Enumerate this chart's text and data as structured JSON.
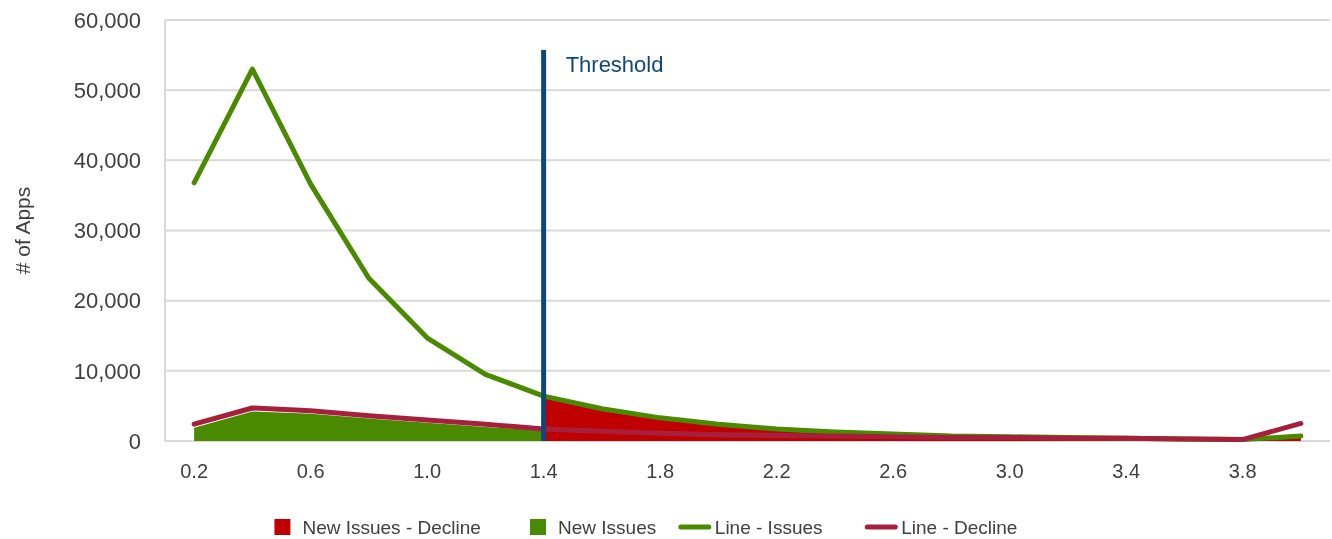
{
  "chart_data": {
    "type": "line",
    "ylabel": "# of Apps",
    "x": [
      0.2,
      0.4,
      0.6,
      0.8,
      1.0,
      1.2,
      1.4,
      1.6,
      1.8,
      2.0,
      2.2,
      2.4,
      2.6,
      2.8,
      3.0,
      3.2,
      3.4,
      3.6,
      3.8,
      4.0
    ],
    "xlim": [
      0.1,
      4.1
    ],
    "xticks": [
      0.2,
      0.6,
      {
        "value": 1,
        "label": "1.0"
      },
      1.4,
      1.8,
      2.2,
      2.6,
      {
        "value": 3,
        "label": "3.0"
      },
      3.4,
      3.8
    ],
    "ylim": [
      0,
      60000
    ],
    "yticks": [
      {
        "value": 0,
        "label": "0"
      },
      {
        "value": 10000,
        "label": "10,000"
      },
      {
        "value": 20000,
        "label": "20,000"
      },
      {
        "value": 30000,
        "label": "30,000"
      },
      {
        "value": 40000,
        "label": "40,000"
      },
      {
        "value": 50000,
        "label": "50,000"
      },
      {
        "value": 60000,
        "label": "60,000"
      }
    ],
    "grid": "y",
    "legend": "bottom",
    "line_style": "solid",
    "series": [
      {
        "name": "New Issues - Decline",
        "type": "area",
        "color": "#c00000",
        "values": [
          null,
          null,
          null,
          null,
          null,
          null,
          6400,
          4600,
          3300,
          2400,
          1700,
          1300,
          1000,
          700,
          600,
          500,
          400,
          300,
          200,
          700
        ]
      },
      {
        "name": "New Issues",
        "type": "area",
        "color": "#4a8a00",
        "values": [
          1900,
          4200,
          3900,
          3200,
          2600,
          2000,
          1500,
          null,
          null,
          null,
          null,
          null,
          null,
          null,
          null,
          null,
          null,
          null,
          null,
          null
        ]
      },
      {
        "name": "Line - Issues",
        "color": "#4a8a00",
        "values": [
          36800,
          53000,
          36600,
          23200,
          14700,
          9500,
          6400,
          4600,
          3300,
          2400,
          1700,
          1300,
          1000,
          700,
          600,
          500,
          400,
          300,
          200,
          700
        ]
      },
      {
        "name": "Line - Decline",
        "color": "#a6203e",
        "values": [
          2400,
          4700,
          4300,
          3600,
          3000,
          2400,
          1700,
          1400,
          1100,
          900,
          800,
          700,
          600,
          500,
          500,
          400,
          400,
          300,
          200,
          2500
        ]
      }
    ],
    "ref_lines": [
      {
        "axis": "x",
        "value": 1.4,
        "label": "Threshold",
        "color": "#0f4778"
      }
    ]
  }
}
